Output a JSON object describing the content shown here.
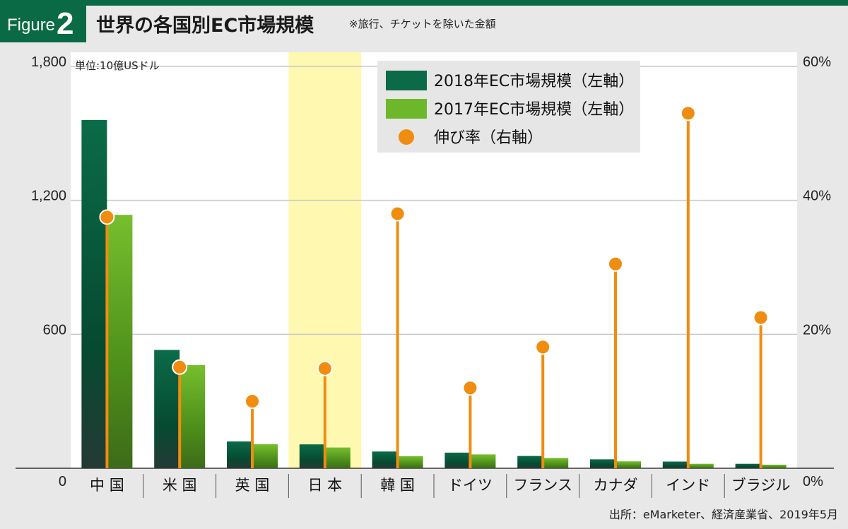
{
  "figure": {
    "label": "Figure",
    "number": "2"
  },
  "title": "世界の各国別EC市場規模",
  "note": "※旅行、チケットを除いた金額",
  "source": "出所：eMarketer、経済産業省、2019年5月",
  "colors": {
    "bar_2018": "#0b6b48",
    "bar_2017": "#6cb82a",
    "growth": "#f08c10",
    "highlight": "#fff8b0"
  },
  "chart_data": {
    "type": "bar",
    "unit_label": "単位:10億USドル",
    "categories": [
      "中 国",
      "米 国",
      "英 国",
      "日 本",
      "韓 国",
      "ドイツ",
      "フランス",
      "カナダ",
      "インド",
      "ブラジル"
    ],
    "highlight_category": "日 本",
    "series": [
      {
        "name": "2018年EC市場規模（左軸）",
        "axis": "left",
        "type": "bar",
        "values": [
          1560,
          530,
          120,
          107,
          75,
          70,
          55,
          40,
          30,
          20
        ]
      },
      {
        "name": "2017年EC市場規模（左軸）",
        "axis": "left",
        "type": "bar",
        "values": [
          1135,
          462,
          108,
          93,
          54,
          62,
          46,
          31,
          20,
          16
        ]
      },
      {
        "name": "伸び率（右軸）",
        "axis": "right",
        "type": "lollipop",
        "values": [
          37.5,
          15.1,
          10.0,
          14.9,
          38.0,
          12.0,
          18.1,
          30.5,
          53.0,
          22.5
        ]
      }
    ],
    "y_left": {
      "min": 0,
      "max": 1800,
      "ticks": [
        "0",
        "600",
        "1,200",
        "1,800"
      ]
    },
    "y_right": {
      "min": 0,
      "max": 60,
      "ticks": [
        "0%",
        "20%",
        "40%",
        "60%"
      ]
    },
    "grid": true,
    "legend_position": "top-center"
  }
}
